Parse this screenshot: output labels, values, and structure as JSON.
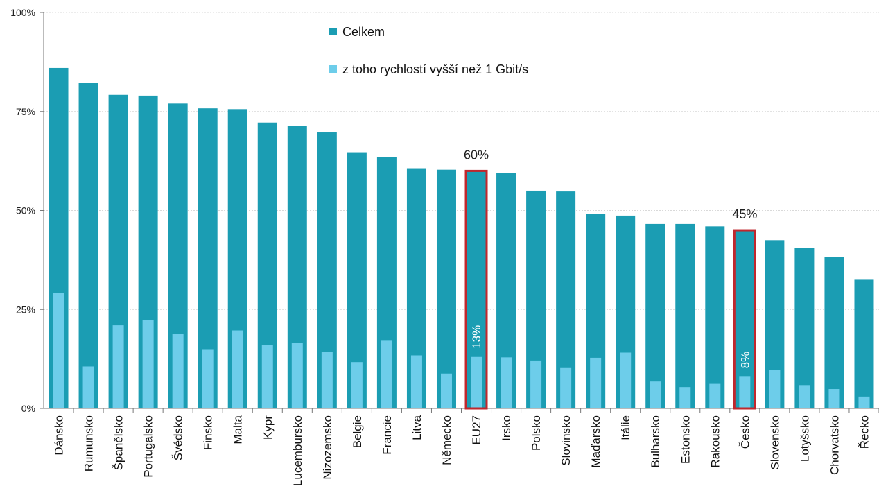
{
  "chart_data": {
    "type": "bar",
    "title": "",
    "xlabel": "",
    "ylabel": "",
    "ylim": [
      0,
      100
    ],
    "yticks": [
      "0%",
      "25%",
      "50%",
      "75%",
      "100%"
    ],
    "grid": true,
    "legend_position": "top-center",
    "categories": [
      "Dánsko",
      "Rumunsko",
      "Španělsko",
      "Portugalsko",
      "Švédsko",
      "Finsko",
      "Malta",
      "Kypr",
      "Lucembursko",
      "Nizozemsko",
      "Belgie",
      "Francie",
      "Litva",
      "Německo",
      "EU27",
      "Irsko",
      "Polsko",
      "Slovinsko",
      "Maďarsko",
      "Itálie",
      "Bulharsko",
      "Estonsko",
      "Rakousko",
      "Česko",
      "Slovensko",
      "Lotyšsko",
      "Chorvatsko",
      "Řecko"
    ],
    "series": [
      {
        "name": "Celkem",
        "color": "#1b9db3",
        "values": [
          86,
          82.3,
          79.2,
          79,
          77,
          75.8,
          75.6,
          72.2,
          71.4,
          69.7,
          64.7,
          63.4,
          60.5,
          60.3,
          60,
          59.4,
          55,
          54.8,
          49.2,
          48.7,
          46.6,
          46.6,
          46,
          45,
          42.5,
          40.5,
          38.3,
          32.5
        ]
      },
      {
        "name": "z toho rychlostí vyšší než 1 Gbit/s",
        "color": "#6dcdea",
        "values": [
          29.2,
          10.6,
          21,
          22.3,
          18.8,
          14.8,
          19.7,
          16.1,
          16.6,
          14.3,
          11.7,
          17.1,
          13.4,
          8.8,
          13,
          12.9,
          12.1,
          10.2,
          12.8,
          14.1,
          6.8,
          5.4,
          6.2,
          8,
          9.7,
          5.9,
          4.9,
          3
        ]
      }
    ],
    "highlight": [
      {
        "category": "EU27",
        "total_label": "60%",
        "sub_label": "13%"
      },
      {
        "category": "Česko",
        "total_label": "45%",
        "sub_label": "8%"
      }
    ],
    "highlight_color": "#c0272d"
  }
}
